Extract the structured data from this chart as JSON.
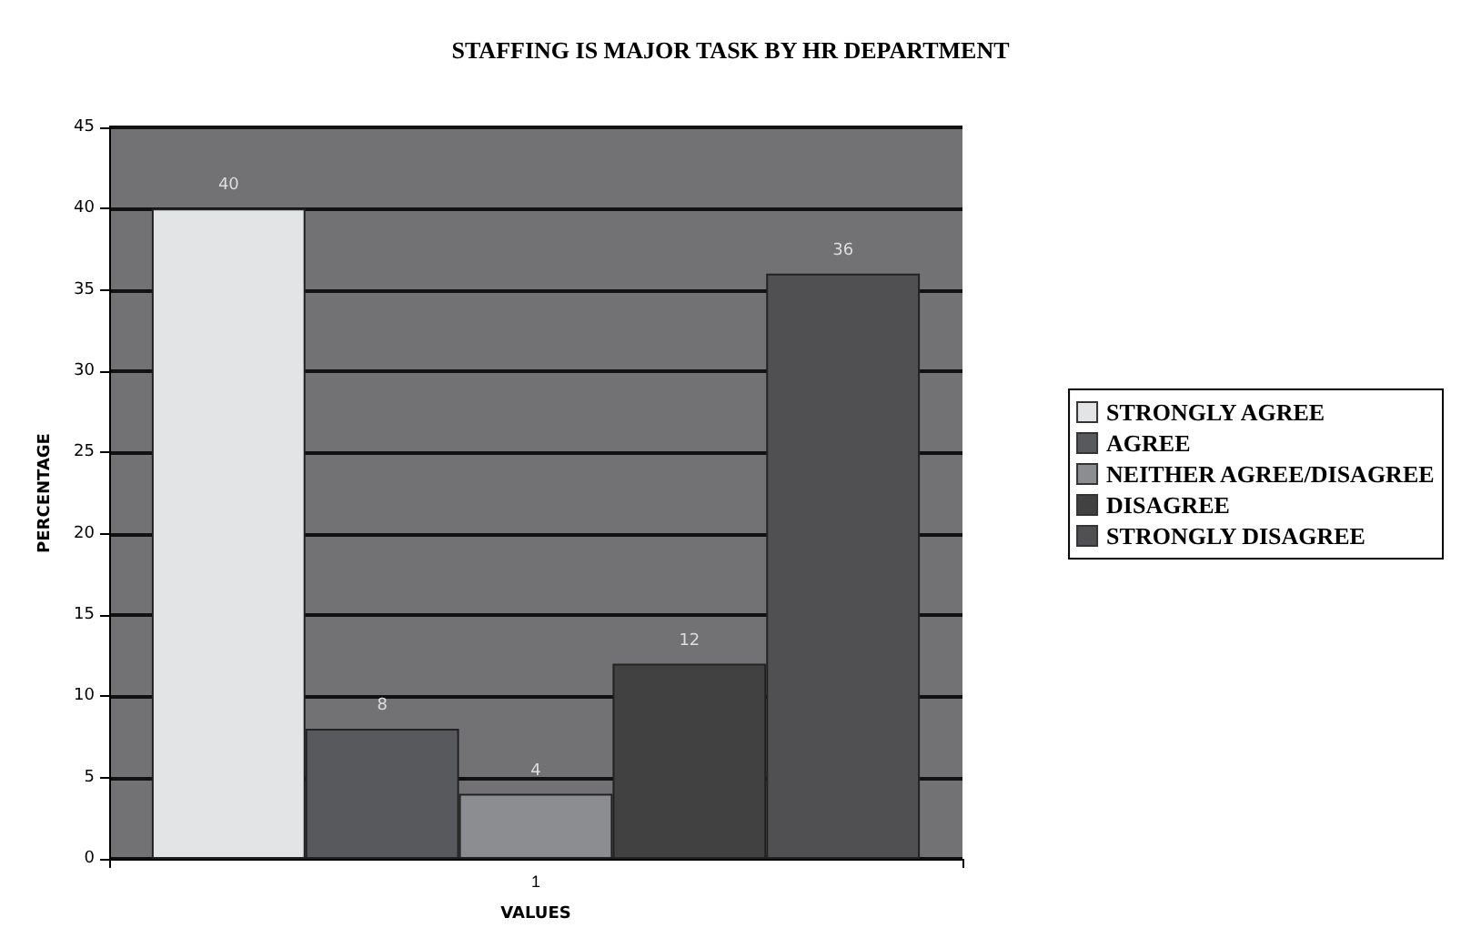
{
  "chart_data": {
    "type": "bar",
    "title": "STAFFING IS MAJOR TASK BY HR DEPARTMENT",
    "xlabel": "VALUES",
    "ylabel": "PERCENTAGE",
    "categories": [
      "1"
    ],
    "series": [
      {
        "name": "STRONGLY AGREE",
        "color": "#e3e4e6",
        "values": [
          40
        ]
      },
      {
        "name": "AGREE",
        "color": "#58595d",
        "values": [
          8
        ]
      },
      {
        "name": "NEITHER AGREE/DISAGREE",
        "color": "#8c8d91",
        "values": [
          4
        ]
      },
      {
        "name": "DISAGREE",
        "color": "#414141",
        "values": [
          12
        ]
      },
      {
        "name": "STRONGLY DISAGREE",
        "color": "#505053",
        "values": [
          36
        ]
      }
    ],
    "ylim": [
      0,
      45
    ],
    "yticks": [
      0,
      5,
      10,
      15,
      20,
      25,
      30,
      35,
      40,
      45
    ],
    "grid": "y",
    "legend": "right",
    "data_labels": true
  }
}
